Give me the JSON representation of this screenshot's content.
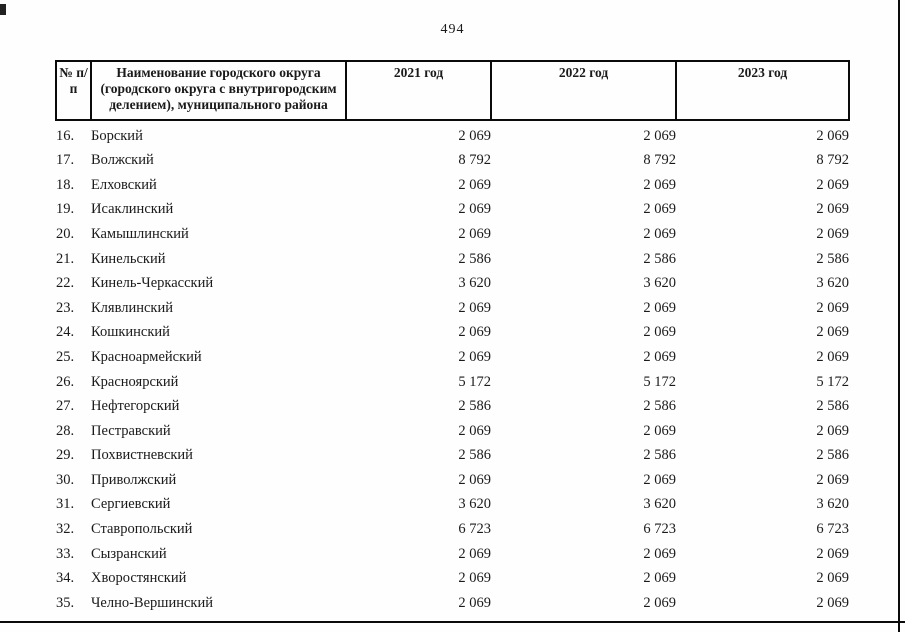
{
  "page": {
    "number": "494"
  },
  "table": {
    "headers": {
      "num": "№ п/п",
      "name": "Наименование городского округа (городского округа с внутригородским делением), муниципального района",
      "y2021": "2021 год",
      "y2022": "2022 год",
      "y2023": "2023 год"
    },
    "rows": [
      {
        "num": "16.",
        "name": "Борский",
        "v2021": "2 069",
        "v2022": "2 069",
        "v2023": "2 069"
      },
      {
        "num": "17.",
        "name": "Волжский",
        "v2021": "8 792",
        "v2022": "8 792",
        "v2023": "8 792"
      },
      {
        "num": "18.",
        "name": "Елховский",
        "v2021": "2 069",
        "v2022": "2 069",
        "v2023": "2 069"
      },
      {
        "num": "19.",
        "name": "Исаклинский",
        "v2021": "2 069",
        "v2022": "2 069",
        "v2023": "2 069"
      },
      {
        "num": "20.",
        "name": "Камышлинский",
        "v2021": "2 069",
        "v2022": "2 069",
        "v2023": "2 069"
      },
      {
        "num": "21.",
        "name": "Кинельский",
        "v2021": "2 586",
        "v2022": "2 586",
        "v2023": "2 586"
      },
      {
        "num": "22.",
        "name": "Кинель-Черкасский",
        "v2021": "3 620",
        "v2022": "3 620",
        "v2023": "3 620"
      },
      {
        "num": "23.",
        "name": "Клявлинский",
        "v2021": "2 069",
        "v2022": "2 069",
        "v2023": "2 069"
      },
      {
        "num": "24.",
        "name": "Кошкинский",
        "v2021": "2 069",
        "v2022": "2 069",
        "v2023": "2 069"
      },
      {
        "num": "25.",
        "name": "Красноармейский",
        "v2021": "2 069",
        "v2022": "2 069",
        "v2023": "2 069"
      },
      {
        "num": "26.",
        "name": "Красноярский",
        "v2021": "5 172",
        "v2022": "5 172",
        "v2023": "5 172"
      },
      {
        "num": "27.",
        "name": "Нефтегорский",
        "v2021": "2 586",
        "v2022": "2 586",
        "v2023": "2 586"
      },
      {
        "num": "28.",
        "name": "Пестравский",
        "v2021": "2 069",
        "v2022": "2 069",
        "v2023": "2 069"
      },
      {
        "num": "29.",
        "name": "Похвистневский",
        "v2021": "2 586",
        "v2022": "2 586",
        "v2023": "2 586"
      },
      {
        "num": "30.",
        "name": "Приволжский",
        "v2021": "2 069",
        "v2022": "2 069",
        "v2023": "2 069"
      },
      {
        "num": "31.",
        "name": "Сергиевский",
        "v2021": "3 620",
        "v2022": "3 620",
        "v2023": "3 620"
      },
      {
        "num": "32.",
        "name": "Ставропольский",
        "v2021": "6 723",
        "v2022": "6 723",
        "v2023": "6 723"
      },
      {
        "num": "33.",
        "name": "Сызранский",
        "v2021": "2 069",
        "v2022": "2 069",
        "v2023": "2 069"
      },
      {
        "num": "34.",
        "name": "Хворостянский",
        "v2021": "2 069",
        "v2022": "2 069",
        "v2023": "2 069"
      },
      {
        "num": "35.",
        "name": "Челно-Вершинский",
        "v2021": "2 069",
        "v2022": "2 069",
        "v2023": "2 069"
      }
    ]
  }
}
